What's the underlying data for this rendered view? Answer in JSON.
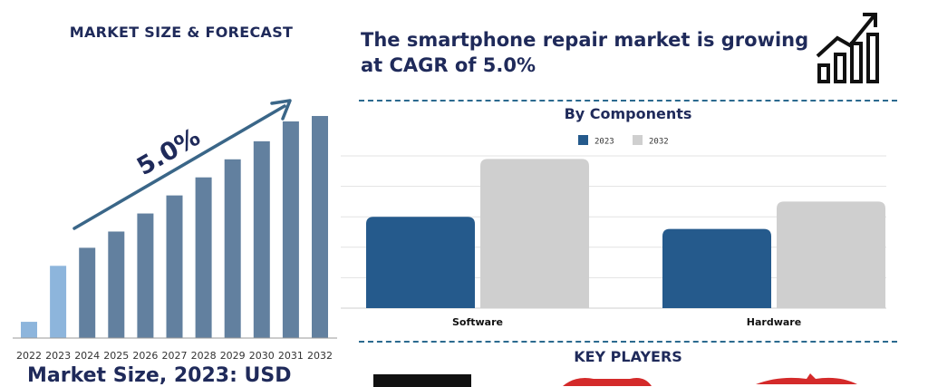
{
  "left_panel": {
    "title": "MARKET SIZE & FORECAST",
    "cagr_label": "5.0%",
    "footer_text": "Market Size, 2023: USD"
  },
  "headline": {
    "line1": "The smartphone repair market is growing",
    "line2": "at CAGR of 5.0%"
  },
  "components_title": "By Components",
  "key_players_title": "KEY PLAYERS",
  "colors": {
    "navy_text": "#1f2a5a",
    "forecast_bar": "#62809f",
    "highlight_bar": "#8db5dc",
    "series_2023": "#255a8c",
    "series_2032": "#cfcfcf",
    "arrow": "#3a6688",
    "dash": "#2b6a8f"
  },
  "icons": [
    "growth-chart-icon"
  ],
  "chart_data": [
    {
      "type": "bar",
      "title": "MARKET SIZE & FORECAST",
      "categories": [
        "2022",
        "2023",
        "2024",
        "2025",
        "2026",
        "2027",
        "2028",
        "2029",
        "2030",
        "2031",
        "2032"
      ],
      "values": [
        0.9,
        4.0,
        5.0,
        5.9,
        6.9,
        7.9,
        8.9,
        9.9,
        10.9,
        12.0,
        12.3
      ],
      "highlighted_categories": [
        "2022",
        "2023"
      ],
      "annotation": "5.0%",
      "xlabel": "",
      "ylabel": "",
      "ylim": [
        0,
        14
      ],
      "grid": false
    },
    {
      "type": "bar",
      "title": "By Components",
      "categories": [
        "Software",
        "Hardware"
      ],
      "series": [
        {
          "name": "2023",
          "values": [
            3.0,
            2.6
          ]
        },
        {
          "name": "2032",
          "values": [
            4.9,
            3.5
          ]
        }
      ],
      "ylim": [
        0,
        5
      ],
      "grid": true,
      "legend": "top-center"
    }
  ]
}
